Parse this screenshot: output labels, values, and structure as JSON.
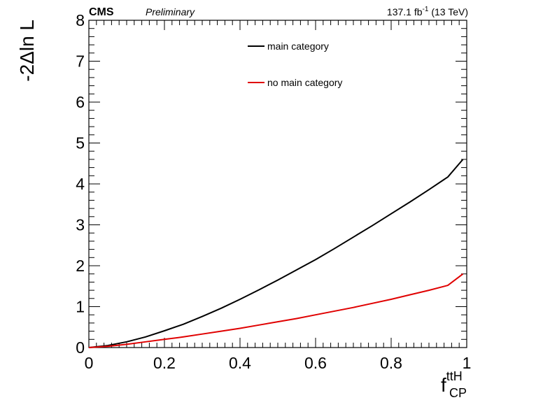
{
  "header": {
    "experiment": "CMS",
    "status": "Preliminary",
    "lumi": "137.1 fb",
    "lumi_exp": "-1",
    "energy": "(13 TeV)"
  },
  "chart_data": {
    "type": "line",
    "xlabel": {
      "main": "f",
      "sup": "ttH",
      "sub": "CP"
    },
    "ylabel": "-2Δln L",
    "xlim": [
      0,
      1
    ],
    "ylim": [
      0,
      8
    ],
    "x_ticks": [
      "0",
      "0.2",
      "0.4",
      "0.6",
      "0.8",
      "1"
    ],
    "y_ticks": [
      "0",
      "1",
      "2",
      "3",
      "4",
      "5",
      "6",
      "7",
      "8"
    ],
    "grid": false,
    "legend_position": "top-center",
    "series": [
      {
        "name": "main category",
        "color": "#000000",
        "x": [
          0,
          0.05,
          0.1,
          0.15,
          0.2,
          0.25,
          0.3,
          0.35,
          0.4,
          0.45,
          0.5,
          0.55,
          0.6,
          0.65,
          0.7,
          0.75,
          0.8,
          0.85,
          0.9,
          0.95,
          0.99
        ],
        "y": [
          0,
          0.05,
          0.14,
          0.26,
          0.41,
          0.57,
          0.76,
          0.96,
          1.18,
          1.41,
          1.65,
          1.9,
          2.15,
          2.42,
          2.7,
          2.98,
          3.27,
          3.56,
          3.86,
          4.17,
          4.6
        ]
      },
      {
        "name": "no main category",
        "color": "#e00000",
        "x": [
          0,
          0.05,
          0.1,
          0.15,
          0.2,
          0.25,
          0.3,
          0.35,
          0.4,
          0.45,
          0.5,
          0.55,
          0.6,
          0.65,
          0.7,
          0.75,
          0.8,
          0.85,
          0.9,
          0.95,
          0.99
        ],
        "y": [
          0,
          0.03,
          0.08,
          0.14,
          0.2,
          0.26,
          0.33,
          0.4,
          0.47,
          0.55,
          0.63,
          0.71,
          0.8,
          0.89,
          0.98,
          1.08,
          1.18,
          1.29,
          1.4,
          1.52,
          1.8
        ]
      }
    ]
  }
}
